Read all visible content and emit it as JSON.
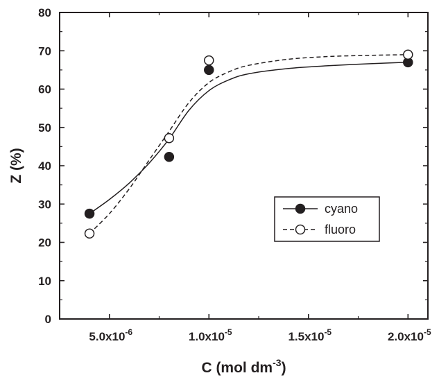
{
  "chart_data": {
    "type": "scatter",
    "xlabel": {
      "main": "C (mol dm",
      "sup": "-3",
      "end": ")"
    },
    "ylabel": "Z (%)",
    "xlim": [
      2.5e-06,
      2.1e-05
    ],
    "ylim": [
      0,
      80
    ],
    "x_ticks": [
      {
        "value": 5e-06,
        "mantissa": "5.0x10",
        "exp": "-6"
      },
      {
        "value": 1e-05,
        "mantissa": "1.0x10",
        "exp": "-5"
      },
      {
        "value": 1.5e-05,
        "mantissa": "1.5x10",
        "exp": "-5"
      },
      {
        "value": 2e-05,
        "mantissa": "2.0x10",
        "exp": "-5"
      }
    ],
    "y_ticks": [
      "0",
      "10",
      "20",
      "30",
      "40",
      "50",
      "60",
      "70",
      "80"
    ],
    "grid": false,
    "legend_position": "center-right",
    "series": [
      {
        "name": "cyano",
        "marker": "filled-circle",
        "line": "solid",
        "x": [
          4e-06,
          8e-06,
          1e-05,
          2e-05
        ],
        "y": [
          27.5,
          42.3,
          65.0,
          67.0
        ],
        "fit": [
          [
            4e-06,
            27.5
          ],
          [
            5e-06,
            31.2
          ],
          [
            6e-06,
            35.5
          ],
          [
            7e-06,
            40.7
          ],
          [
            8e-06,
            47.0
          ],
          [
            9e-06,
            54.5
          ],
          [
            1e-05,
            59.6
          ],
          [
            1.1e-05,
            62.4
          ],
          [
            1.2e-05,
            64.0
          ],
          [
            1.4e-05,
            65.4
          ],
          [
            1.6e-05,
            66.1
          ],
          [
            1.8e-05,
            66.6
          ],
          [
            2e-05,
            67.0
          ]
        ]
      },
      {
        "name": "fluoro",
        "marker": "open-circle",
        "line": "dashed",
        "x": [
          4e-06,
          8e-06,
          1e-05,
          2e-05
        ],
        "y": [
          22.3,
          47.2,
          67.5,
          69.0
        ],
        "fit": [
          [
            4e-06,
            22.3
          ],
          [
            5e-06,
            27.5
          ],
          [
            6e-06,
            34.0
          ],
          [
            7e-06,
            41.5
          ],
          [
            8e-06,
            49.0
          ],
          [
            9e-06,
            56.5
          ],
          [
            1e-05,
            61.7
          ],
          [
            1.1e-05,
            64.5
          ],
          [
            1.2e-05,
            66.2
          ],
          [
            1.4e-05,
            67.8
          ],
          [
            1.6e-05,
            68.5
          ],
          [
            1.8e-05,
            68.8
          ],
          [
            2e-05,
            69.0
          ]
        ]
      }
    ]
  }
}
